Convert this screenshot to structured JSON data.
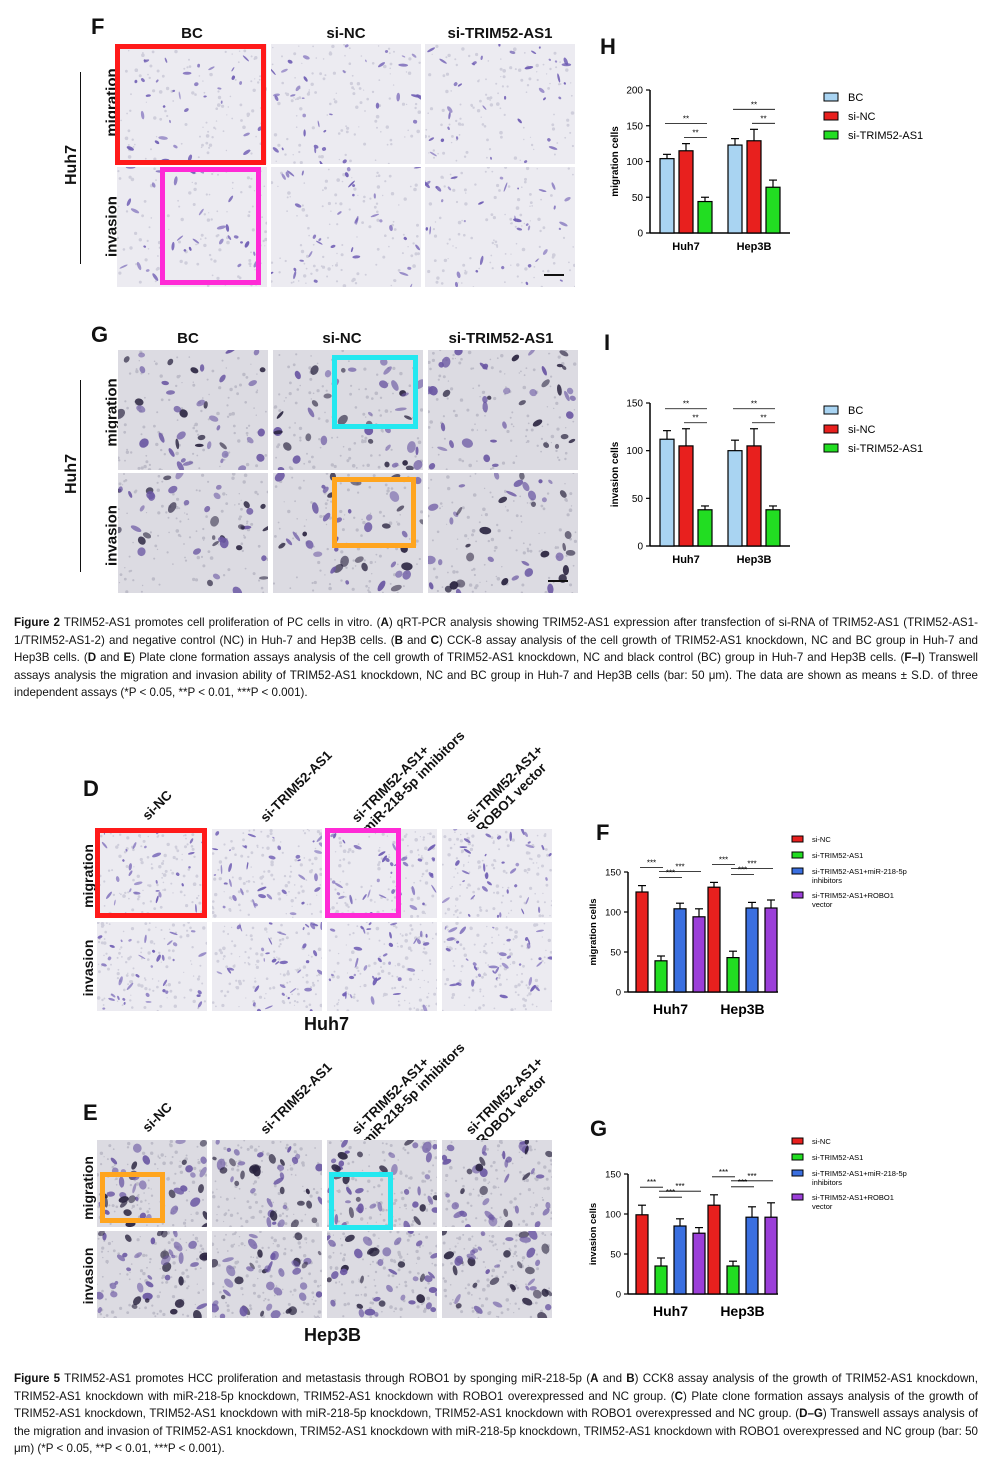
{
  "fig2": {
    "panelF": {
      "letter": "F",
      "cols": [
        "BC",
        "si-NC",
        "si-TRIM52-AS1"
      ],
      "rows": [
        "migration",
        "invasion"
      ],
      "cell_line": "Huh7"
    },
    "panelG": {
      "letter": "G",
      "cols": [
        "BC",
        "si-NC",
        "si-TRIM52-AS1"
      ],
      "rows": [
        "migration",
        "invasion"
      ],
      "cell_line": "Huh7"
    },
    "chartH": {
      "letter": "H",
      "chart_data": {
        "type": "bar",
        "categories": [
          "Huh7",
          "Hep3B"
        ],
        "ylabel": "migration cells",
        "ylim": [
          0,
          200
        ],
        "yticks": [
          "0",
          "50",
          "100",
          "150",
          "200"
        ],
        "series": [
          {
            "name": "BC",
            "values": [
              104,
              123
            ],
            "err": [
              6,
              9
            ],
            "color": "#a9d4f2"
          },
          {
            "name": "si-NC",
            "values": [
              115,
              129
            ],
            "err": [
              10,
              16
            ],
            "color": "#e8201e"
          },
          {
            "name": "si-TRIM52-AS1",
            "values": [
              44,
              64
            ],
            "err": [
              6,
              10
            ],
            "color": "#22dd22"
          }
        ],
        "significance": [
          "**",
          "**",
          "**",
          "**"
        ],
        "legend": "right"
      }
    },
    "chartI": {
      "letter": "I",
      "chart_data": {
        "type": "bar",
        "categories": [
          "Huh7",
          "Hep3B"
        ],
        "ylabel": "invasion cells",
        "ylim": [
          0,
          150
        ],
        "yticks": [
          "0",
          "50",
          "100",
          "150"
        ],
        "series": [
          {
            "name": "BC",
            "values": [
              112,
              100
            ],
            "err": [
              9,
              11
            ],
            "color": "#a9d4f2"
          },
          {
            "name": "si-NC",
            "values": [
              105,
              105
            ],
            "err": [
              18,
              18
            ],
            "color": "#e8201e"
          },
          {
            "name": "si-TRIM52-AS1",
            "values": [
              38,
              38
            ],
            "err": [
              4,
              4
            ],
            "color": "#22dd22"
          }
        ],
        "significance": [
          "**",
          "**",
          "**",
          "**"
        ],
        "legend": "right"
      }
    },
    "caption": {
      "fig": "Figure 2",
      "text": [
        {
          "t": " TRIM52-AS1 promotes cell proliferation of PC cells in vitro. ("
        },
        {
          "b": "A"
        },
        {
          "t": ") qRT-PCR analysis showing TRIM52-AS1 expression after transfection of si-RNA of TRIM52-AS1 (TRIM52-AS1-1/TRIM52-AS1-2) and negative control (NC) in Huh-7 and Hep3B cells. ("
        },
        {
          "b": "B"
        },
        {
          "t": " and "
        },
        {
          "b": "C"
        },
        {
          "t": ") CCK-8 assay analysis of the cell growth of TRIM52-AS1 knockdown, NC and BC group in Huh-7 and Hep3B cells. ("
        },
        {
          "b": "D"
        },
        {
          "t": " and "
        },
        {
          "b": "E"
        },
        {
          "t": ") Plate clone formation assays analysis of the cell growth of TRIM52-AS1 knockdown, NC and black control (BC) group in Huh-7 and Hep3B cells. ("
        },
        {
          "b": "F–I"
        },
        {
          "t": ") Transwell assays analysis the migration and invasion ability of TRIM52-AS1 knockdown, NC and BC group in Huh-7 and Hep3B cells (bar: 50 μm). The data are shown as means ± S.D. of three independent assays (*P < 0.05, **P < 0.01, ***P < 0.001)."
        }
      ]
    }
  },
  "fig5": {
    "panelD": {
      "letter": "D",
      "cols": [
        "si-NC",
        "si-TRIM52-AS1",
        "si-TRIM52-AS1+\nmiR-218-5p inhibitors",
        "si-TRIM52-AS1+\nROBO1 vector"
      ],
      "rows": [
        "migration",
        "invasion"
      ],
      "cell_line": "Huh7"
    },
    "panelE": {
      "letter": "E",
      "cols": [
        "si-NC",
        "si-TRIM52-AS1",
        "si-TRIM52-AS1+\nmiR-218-5p inhibitors",
        "si-TRIM52-AS1+\nROBO1 vector"
      ],
      "rows": [
        "migration",
        "invasion"
      ],
      "cell_line": "Hep3B"
    },
    "chartF": {
      "letter": "F",
      "chart_data": {
        "type": "bar",
        "categories": [
          "Huh7",
          "Hep3B"
        ],
        "ylabel": "migration cells",
        "ylim": [
          0,
          150
        ],
        "yticks": [
          "0",
          "50",
          "100",
          "150"
        ],
        "series": [
          {
            "name": "si-NC",
            "values": [
              125,
              131
            ],
            "err": [
              8,
              6
            ],
            "color": "#e8201e"
          },
          {
            "name": "si-TRIM52-AS1",
            "values": [
              39,
              43
            ],
            "err": [
              6,
              8
            ],
            "color": "#22dd22"
          },
          {
            "name": "si-TRIM52-AS1+miR-218-5p inhibitors",
            "values": [
              104,
              105
            ],
            "err": [
              7,
              7
            ],
            "color": "#3a6fe0"
          },
          {
            "name": "si-TRIM52-AS1+ROBO1 vector",
            "values": [
              94,
              105
            ],
            "err": [
              10,
              10
            ],
            "color": "#9b3fd8"
          }
        ],
        "significance": [
          "***",
          "***",
          "***",
          "***",
          "***",
          "***"
        ],
        "legend": "right"
      }
    },
    "chartG": {
      "letter": "G",
      "chart_data": {
        "type": "bar",
        "categories": [
          "Huh7",
          "Hep3B"
        ],
        "ylabel": "invasion cells",
        "ylim": [
          0,
          150
        ],
        "yticks": [
          "0",
          "50",
          "100",
          "150"
        ],
        "series": [
          {
            "name": "si-NC",
            "values": [
              99,
              111
            ],
            "err": [
              12,
              13
            ],
            "color": "#e8201e"
          },
          {
            "name": "si-TRIM52-AS1",
            "values": [
              35,
              35
            ],
            "err": [
              10,
              6
            ],
            "color": "#22dd22"
          },
          {
            "name": "si-TRIM52-AS1+miR-218-5p inhibitors",
            "values": [
              85,
              96
            ],
            "err": [
              9,
              13
            ],
            "color": "#3a6fe0"
          },
          {
            "name": "si-TRIM52-AS1+ROBO1 vector",
            "values": [
              76,
              96
            ],
            "err": [
              7,
              18
            ],
            "color": "#9b3fd8"
          }
        ],
        "significance": [
          "***",
          "***",
          "***",
          "***",
          "***",
          "***"
        ],
        "legend": "right"
      }
    },
    "caption": {
      "fig": "Figure 5",
      "text": [
        {
          "t": " TRIM52-AS1 promotes HCC proliferation and metastasis through ROBO1 by sponging miR-218-5p ("
        },
        {
          "b": "A"
        },
        {
          "t": " and "
        },
        {
          "b": "B"
        },
        {
          "t": ") CCK8 assay analysis of the growth of TRIM52-AS1 knockdown, TRIM52-AS1 knockdown with miR-218-5p knockdown, TRIM52-AS1 knockdown with ROBO1 overexpressed and NC group. ("
        },
        {
          "b": "C"
        },
        {
          "t": ") Plate clone formation assays analysis of the growth of TRIM52-AS1 knockdown, TRIM52-AS1 knockdown with miR-218-5p knockdown, TRIM52-AS1 knockdown with ROBO1 overexpressed and NC group. ("
        },
        {
          "b": "D–G"
        },
        {
          "t": ") Transwell assays analysis of the migration and invasion of TRIM52-AS1 knockdown, TRIM52-AS1 knockdown with miR-218-5p knockdown, TRIM52-AS1 knockdown with ROBO1 overexpressed and NC group (bar: 50 μm) (*P < 0.05, **P < 0.01, ***P < 0.001)."
        }
      ]
    }
  }
}
